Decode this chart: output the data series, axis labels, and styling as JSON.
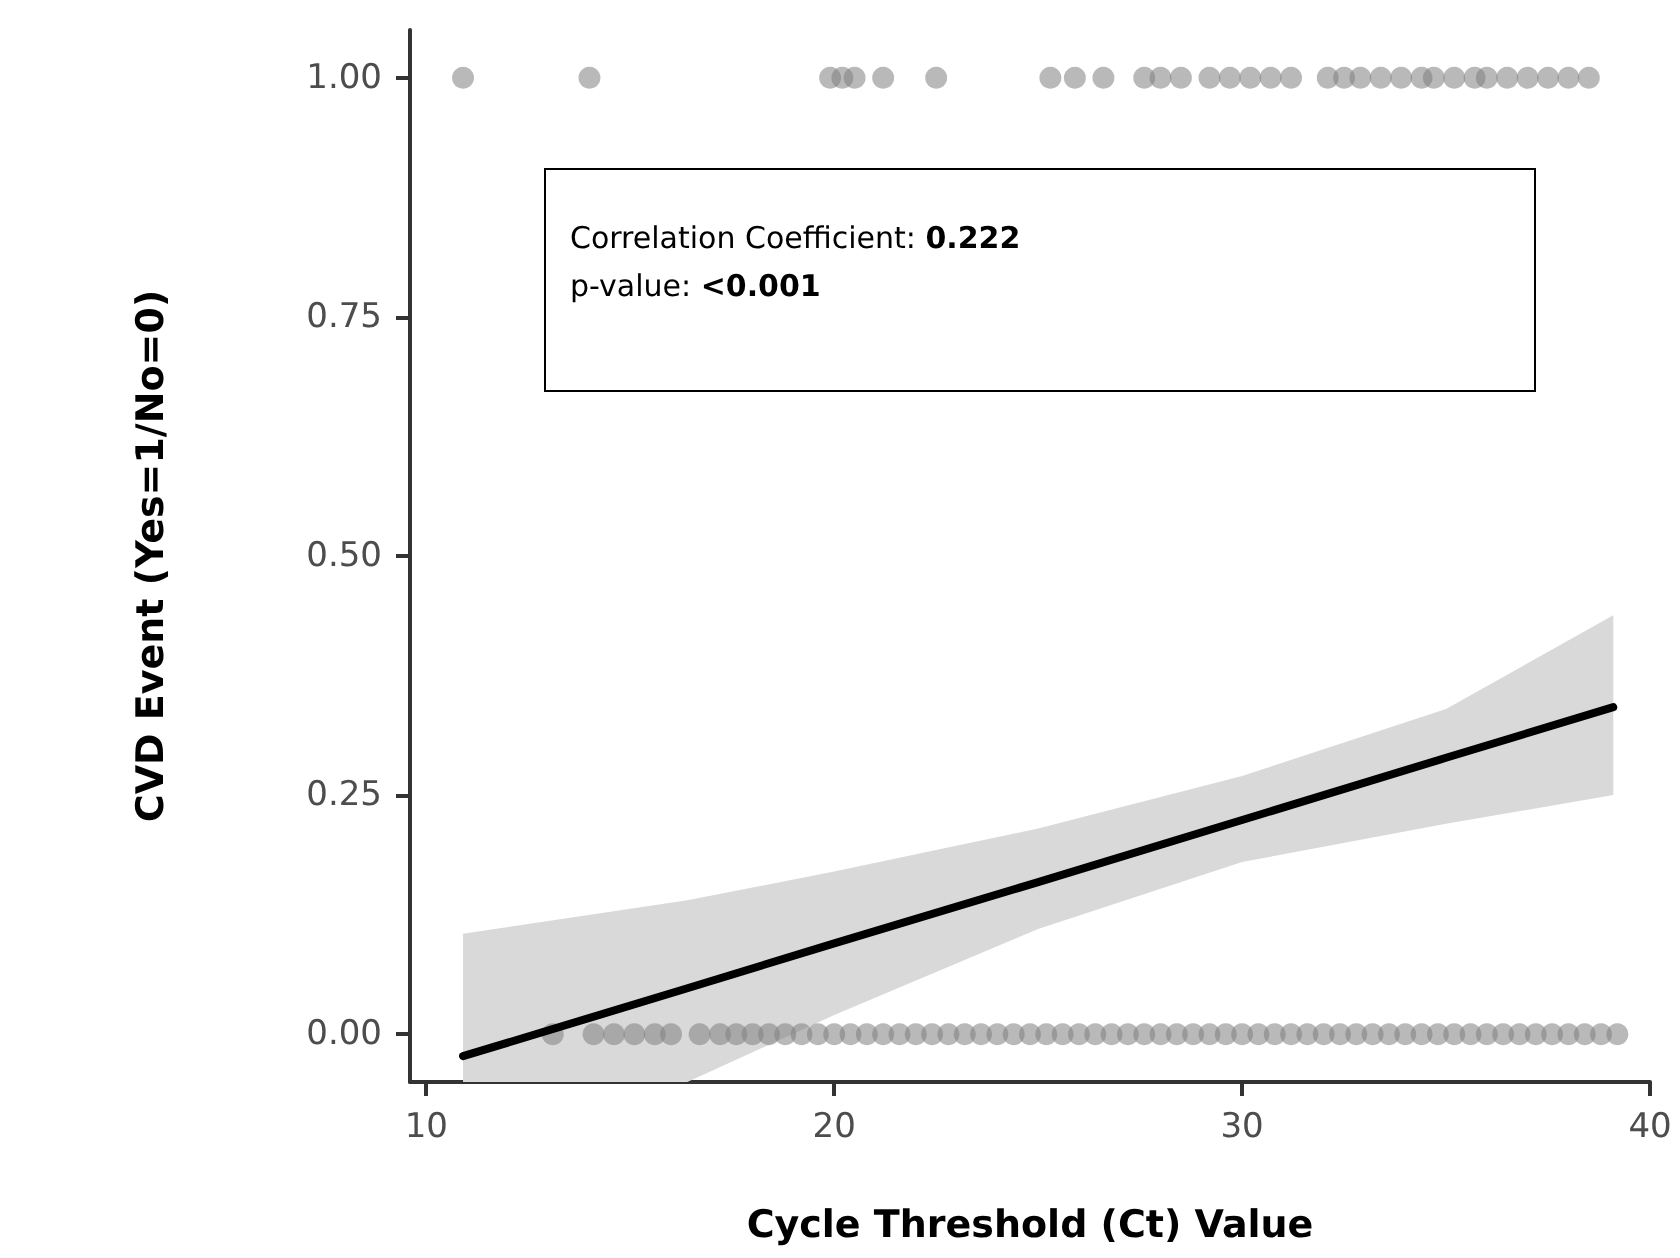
{
  "chart_data": {
    "type": "scatter",
    "xlabel": "Cycle Threshold (Ct) Value",
    "ylabel": "CVD Event (Yes=1/No=0)",
    "annotations": [
      "Correlation Coefficient: 0.222",
      "p-value: <0.001"
    ],
    "xlim": [
      9.6,
      40
    ],
    "xticks": [
      10,
      20,
      30,
      40
    ],
    "ylim": [
      -0.05,
      1.05
    ],
    "yticks": [
      {
        "value": 0,
        "label": "0.00"
      },
      {
        "value": 0.25,
        "label": "0.25"
      },
      {
        "value": 0.5,
        "label": "0.50"
      },
      {
        "value": 0.75,
        "label": "0.75"
      },
      {
        "value": 1,
        "label": "1.00"
      }
    ],
    "grid": false,
    "marker": "circle",
    "series": [
      {
        "color": "#808080",
        "x": [
          10.9,
          14.0,
          19.9,
          20.2,
          20.5,
          21.2,
          22.5,
          25.3,
          25.9,
          26.6,
          27.6,
          28.0,
          28.5,
          29.2,
          29.7,
          30.2,
          30.7,
          31.2,
          32.1,
          32.5,
          32.9,
          33.4,
          33.9,
          34.4,
          34.7,
          35.2,
          35.7,
          36.0,
          36.5,
          37.0,
          37.5,
          38.0,
          38.5
        ],
        "values": [
          1,
          1,
          1,
          1,
          1,
          1,
          1,
          1,
          1,
          1,
          1,
          1,
          1,
          1,
          1,
          1,
          1,
          1,
          1,
          1,
          1,
          1,
          1,
          1,
          1,
          1,
          1,
          1,
          1,
          1,
          1,
          1,
          1
        ]
      },
      {
        "color": "#808080",
        "x": [
          13.1,
          14.1,
          14.6,
          15.1,
          15.6,
          16.0,
          16.7,
          17.2,
          17.6,
          18.0,
          18.4,
          18.8,
          19.2,
          19.6,
          20.0,
          20.4,
          20.8,
          21.2,
          21.6,
          22.0,
          22.4,
          22.8,
          23.2,
          23.6,
          24.0,
          24.4,
          24.8,
          25.2,
          25.6,
          26.0,
          26.4,
          26.8,
          27.2,
          27.6,
          28.0,
          28.4,
          28.8,
          29.2,
          29.6,
          30.0,
          30.4,
          30.8,
          31.2,
          31.6,
          32.0,
          32.4,
          32.8,
          33.2,
          33.6,
          34.0,
          34.4,
          34.8,
          35.2,
          35.6,
          36.0,
          36.4,
          36.8,
          37.2,
          37.6,
          38.0,
          38.4,
          38.8,
          39.2
        ],
        "values": [
          0,
          0,
          0,
          0,
          0,
          0,
          0,
          0,
          0,
          0,
          0,
          0,
          0,
          0,
          0,
          0,
          0,
          0,
          0,
          0,
          0,
          0,
          0,
          0,
          0,
          0,
          0,
          0,
          0,
          0,
          0,
          0,
          0,
          0,
          0,
          0,
          0,
          0,
          0,
          0,
          0,
          0,
          0,
          0,
          0,
          0,
          0,
          0,
          0,
          0,
          0,
          0,
          0,
          0,
          0,
          0,
          0,
          0,
          0,
          0,
          0,
          0,
          0
        ]
      },
      {
        "type": "line",
        "color": "#000000",
        "marker": "none",
        "x": [
          10.9,
          16.4,
          20,
          25,
          30,
          35,
          39.1
        ],
        "values": [
          -0.023,
          0.048,
          0.095,
          0.159,
          0.224,
          0.289,
          0.342
        ],
        "lower": [
          -0.05,
          -0.05,
          0.02,
          0.11,
          0.18,
          0.22,
          0.25
        ],
        "upper": [
          0.105,
          0.14,
          0.17,
          0.215,
          0.27,
          0.34,
          0.438
        ]
      }
    ]
  }
}
